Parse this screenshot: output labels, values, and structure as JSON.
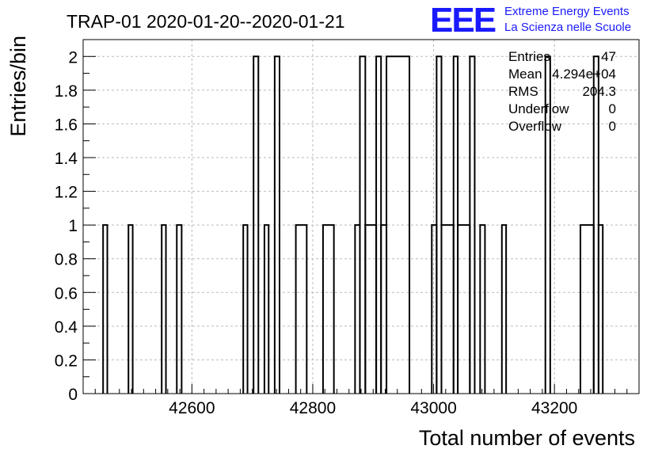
{
  "logo": {
    "mark": "EEE",
    "line1": "Extreme Energy Events",
    "line2": "La Scienza nelle Scuole",
    "color": "#1a1aff"
  },
  "stats": [
    {
      "label": "Entries",
      "value": "47"
    },
    {
      "label": "Mean",
      "value": "4.294e+04"
    },
    {
      "label": "RMS",
      "value": "204.3"
    },
    {
      "label": "Underflow",
      "value": "0"
    },
    {
      "label": "Overflow",
      "value": "0"
    }
  ],
  "chart_data": {
    "type": "histogram",
    "title": "TRAP-01 2020-01-20--2020-01-21",
    "xlabel": "Total number of events",
    "ylabel": "Entries/bin",
    "xlim": [
      42420,
      43340
    ],
    "ylim": [
      0,
      2.1
    ],
    "grid": true,
    "x_ticks": [
      42600,
      42800,
      43000,
      43200
    ],
    "y_ticks": [
      0,
      0.2,
      0.4,
      0.6,
      0.8,
      1,
      1.2,
      1.4,
      1.6,
      1.8,
      2
    ],
    "y_tick_labels": [
      "0",
      "0.2",
      "0.4",
      "0.6",
      "0.8",
      "1",
      "1.2",
      "1.4",
      "1.6",
      "1.8",
      "2"
    ],
    "x_tick_labels": [
      "42600",
      "42800",
      "43000",
      "43200"
    ],
    "bins": [
      {
        "lo": 42453,
        "hi": 42460,
        "value": 1
      },
      {
        "lo": 42495,
        "hi": 42502,
        "value": 1
      },
      {
        "lo": 42550,
        "hi": 42557,
        "value": 1
      },
      {
        "lo": 42575,
        "hi": 42583,
        "value": 1
      },
      {
        "lo": 42685,
        "hi": 42692,
        "value": 1
      },
      {
        "lo": 42702,
        "hi": 42710,
        "value": 2
      },
      {
        "lo": 42720,
        "hi": 42727,
        "value": 1
      },
      {
        "lo": 42737,
        "hi": 42745,
        "value": 2
      },
      {
        "lo": 42772,
        "hi": 42790,
        "value": 1
      },
      {
        "lo": 42817,
        "hi": 42835,
        "value": 1
      },
      {
        "lo": 42870,
        "hi": 42878,
        "value": 1
      },
      {
        "lo": 42878,
        "hi": 42887,
        "value": 2
      },
      {
        "lo": 42887,
        "hi": 42905,
        "value": 1
      },
      {
        "lo": 42905,
        "hi": 42913,
        "value": 2
      },
      {
        "lo": 42913,
        "hi": 42922,
        "value": 1
      },
      {
        "lo": 42922,
        "hi": 42960,
        "value": 2
      },
      {
        "lo": 42997,
        "hi": 43005,
        "value": 1
      },
      {
        "lo": 43005,
        "hi": 43013,
        "value": 2
      },
      {
        "lo": 43013,
        "hi": 43033,
        "value": 1
      },
      {
        "lo": 43033,
        "hi": 43040,
        "value": 2
      },
      {
        "lo": 43040,
        "hi": 43060,
        "value": 1
      },
      {
        "lo": 43060,
        "hi": 43068,
        "value": 2
      },
      {
        "lo": 43077,
        "hi": 43085,
        "value": 1
      },
      {
        "lo": 43113,
        "hi": 43120,
        "value": 1
      },
      {
        "lo": 43185,
        "hi": 43193,
        "value": 2
      },
      {
        "lo": 43243,
        "hi": 43265,
        "value": 1
      },
      {
        "lo": 43265,
        "hi": 43273,
        "value": 2
      },
      {
        "lo": 43273,
        "hi": 43280,
        "value": 1
      }
    ]
  }
}
